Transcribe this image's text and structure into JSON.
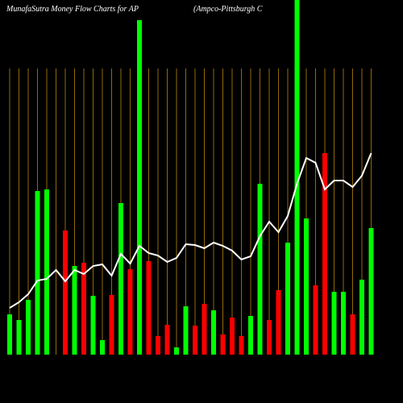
{
  "chart_data": {
    "type": "bar",
    "title": "MunafaSutra  Money Flow  Charts for AP",
    "subtitle": "(Ampco-Pittsburgh C",
    "categories": [
      null,
      null,
      null,
      null,
      null,
      null,
      null,
      null,
      null,
      null,
      null,
      null,
      null,
      null,
      null,
      null,
      null,
      null,
      null,
      null,
      null,
      null,
      null,
      null,
      null,
      null,
      null,
      null,
      null,
      null,
      null,
      null,
      null,
      null,
      null,
      null,
      null,
      null,
      null,
      null
    ],
    "series": [
      {
        "type": "bar",
        "values": [
          50,
          43,
          68,
          203,
          205,
          0,
          154,
          110,
          114,
          73,
          18,
          74,
          188,
          106,
          415,
          116,
          23,
          37,
          9,
          60,
          36,
          63,
          55,
          25,
          46,
          23,
          48,
          212,
          43,
          80,
          139,
          440,
          169,
          86,
          250,
          78,
          78,
          50,
          93,
          157
        ],
        "colors": [
          "#00ff00",
          "#00ff00",
          "#00ff00",
          "#00ff00",
          "#00ff00",
          "#00ff00",
          "#ff0000",
          "#00ff00",
          "#ff0000",
          "#00ff00",
          "#00ff00",
          "#ff0000",
          "#00ff00",
          "#ff0000",
          "#00ff00",
          "#ff0000",
          "#ff0000",
          "#ff0000",
          "#00ff00",
          "#00ff00",
          "#ff0000",
          "#ff0000",
          "#00ff00",
          "#ff0000",
          "#ff0000",
          "#ff0000",
          "#00ff00",
          "#00ff00",
          "#ff0000",
          "#ff0000",
          "#00ff00",
          "#00ff00",
          "#00ff00",
          "#ff0000",
          "#ff0000",
          "#00ff00",
          "#00ff00",
          "#ff0000",
          "#00ff00",
          "#00ff00"
        ]
      },
      {
        "type": "line",
        "color": "#ffffff",
        "values": [
          58,
          65,
          75,
          92,
          94,
          105,
          91,
          105,
          100,
          110,
          112,
          98,
          125,
          113,
          135,
          126,
          123,
          115,
          120,
          137,
          136,
          132,
          139,
          135,
          129,
          118,
          122,
          147,
          165,
          152,
          172,
          212,
          244,
          238,
          205,
          216,
          216,
          208,
          222,
          250
        ]
      }
    ],
    "ylim": [
      0,
      440
    ],
    "grid_color": "#b8860b"
  }
}
